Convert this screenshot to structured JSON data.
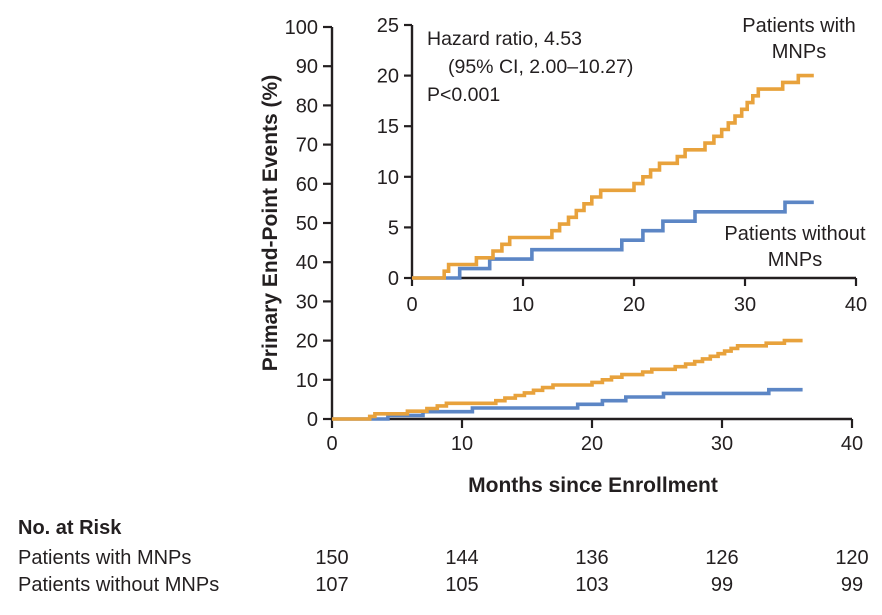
{
  "figure": {
    "annotation": {
      "line1": "Hazard ratio, 4.53",
      "line2": "(95% CI, 2.00–10.27)",
      "line3": "P<0.001"
    }
  },
  "chart_data": {
    "type": "line",
    "subtype": "kaplan-meier-step-cumulative-incidence",
    "title": "",
    "xlabel": "Months since Enrollment",
    "ylabel": "Primary End-Point Events (%)",
    "xlim": [
      0,
      40
    ],
    "x_ticks": [
      0,
      10,
      20,
      30,
      40
    ],
    "main_panel": {
      "ylim": [
        0,
        100
      ],
      "y_ticks": [
        0,
        10,
        20,
        30,
        40,
        50,
        60,
        70,
        80,
        90,
        100
      ],
      "grid": false
    },
    "inset_panel": {
      "ylim": [
        0,
        25
      ],
      "y_ticks": [
        0,
        5,
        10,
        15,
        20,
        25
      ],
      "grid": false
    },
    "annotation": "Hazard ratio, 4.53 (95% CI, 2.00–10.27) P<0.001",
    "legend_position": "labels beside curves",
    "series": [
      {
        "name": "Patients with MNPs",
        "label_lines": [
          "Patients with",
          "MNPs"
        ],
        "color": "#E8A23C",
        "end_month": 36.2,
        "steps": [
          [
            2.9,
            0.67
          ],
          [
            3.3,
            1.33
          ],
          [
            5.8,
            2.0
          ],
          [
            7.3,
            2.67
          ],
          [
            8.1,
            3.33
          ],
          [
            8.8,
            4.0
          ],
          [
            12.6,
            4.67
          ],
          [
            13.3,
            5.33
          ],
          [
            14.1,
            6.0
          ],
          [
            14.8,
            6.67
          ],
          [
            15.5,
            7.33
          ],
          [
            16.2,
            8.0
          ],
          [
            17.0,
            8.67
          ],
          [
            20.0,
            9.33
          ],
          [
            20.8,
            10.0
          ],
          [
            21.5,
            10.67
          ],
          [
            22.3,
            11.33
          ],
          [
            23.9,
            12.0
          ],
          [
            24.6,
            12.67
          ],
          [
            26.4,
            13.33
          ],
          [
            27.2,
            14.0
          ],
          [
            27.9,
            14.67
          ],
          [
            28.5,
            15.33
          ],
          [
            29.1,
            16.0
          ],
          [
            29.7,
            16.67
          ],
          [
            30.2,
            17.33
          ],
          [
            30.7,
            18.0
          ],
          [
            31.2,
            18.67
          ],
          [
            33.4,
            19.33
          ],
          [
            34.8,
            20.0
          ]
        ]
      },
      {
        "name": "Patients without MNPs",
        "label_lines": [
          "Patients without",
          "MNPs"
        ],
        "color": "#5C86C5",
        "end_month": 36.2,
        "steps": [
          [
            4.3,
            0.93
          ],
          [
            7.0,
            1.87
          ],
          [
            10.8,
            2.8
          ],
          [
            18.9,
            3.74
          ],
          [
            20.8,
            4.67
          ],
          [
            22.6,
            5.61
          ],
          [
            25.5,
            6.54
          ],
          [
            33.6,
            7.48
          ]
        ]
      }
    ]
  },
  "risk_table": {
    "header": "No. at Risk",
    "months": [
      0,
      10,
      20,
      30,
      40
    ],
    "rows": [
      {
        "label": "Patients with MNPs",
        "values": [
          "150",
          "144",
          "136",
          "126",
          "120"
        ]
      },
      {
        "label": "Patients without MNPs",
        "values": [
          "107",
          "105",
          "103",
          "99",
          "99"
        ]
      }
    ]
  }
}
